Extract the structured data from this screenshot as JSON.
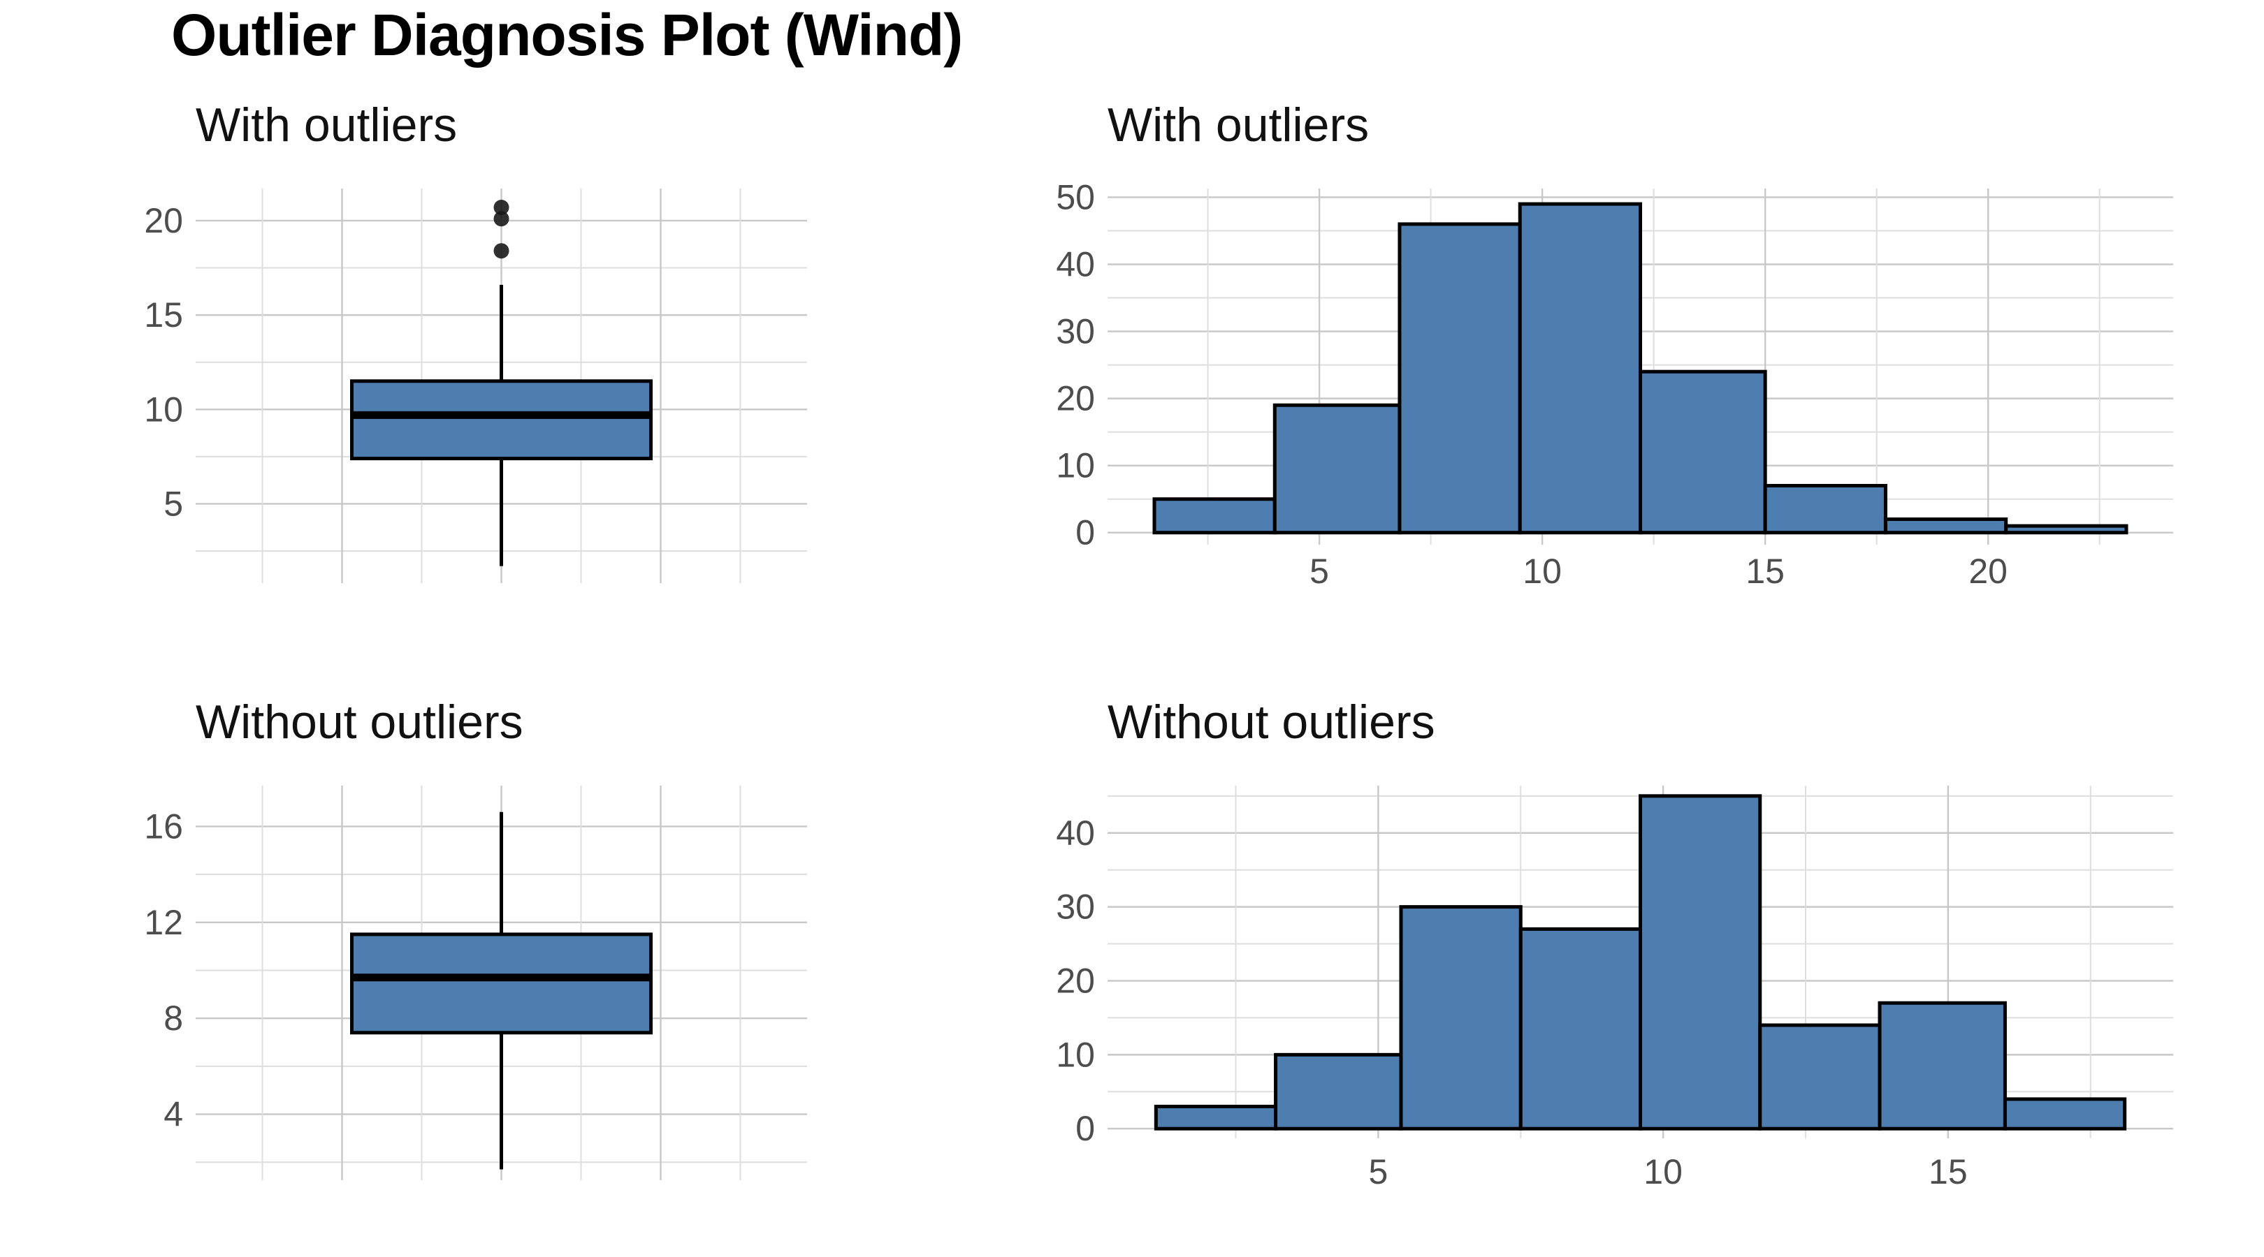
{
  "title": "Outlier Diagnosis Plot (Wind)",
  "colors": {
    "fill": "#4e7db0",
    "outline": "#000000",
    "grid_major": "#c8c8c8",
    "grid_minor": "#dedede",
    "text": "#4d4d4d"
  },
  "chart_data": [
    {
      "type": "boxplot",
      "subtitle": "With outliers",
      "ylim": [
        0.8,
        21.7
      ],
      "yticks": [
        5,
        10,
        15,
        20
      ],
      "stats": {
        "min": 1.7,
        "q1": 7.4,
        "median": 9.7,
        "q3": 11.5,
        "max": 16.6
      },
      "outliers": [
        20.7,
        20.1,
        18.4
      ],
      "grid": true
    },
    {
      "type": "histogram",
      "subtitle": "With outliers",
      "bins": [
        {
          "x0": 1.3,
          "x1": 4.0,
          "count": 5
        },
        {
          "x0": 4.0,
          "x1": 6.8,
          "count": 19
        },
        {
          "x0": 6.8,
          "x1": 9.5,
          "count": 46
        },
        {
          "x0": 9.5,
          "x1": 12.2,
          "count": 49
        },
        {
          "x0": 12.2,
          "x1": 15.0,
          "count": 24
        },
        {
          "x0": 15.0,
          "x1": 17.7,
          "count": 7
        },
        {
          "x0": 17.7,
          "x1": 20.4,
          "count": 2
        },
        {
          "x0": 20.4,
          "x1": 23.1,
          "count": 1
        }
      ],
      "xlim": [
        0.25,
        24.15
      ],
      "ylim": [
        -1.8,
        51.3
      ],
      "xticks": [
        5,
        10,
        15,
        20
      ],
      "yticks": [
        0,
        10,
        20,
        30,
        40,
        50
      ],
      "grid": true
    },
    {
      "type": "boxplot",
      "subtitle": "Without outliers",
      "ylim": [
        1.25,
        17.7
      ],
      "yticks": [
        4,
        8,
        12,
        16
      ],
      "stats": {
        "min": 1.7,
        "q1": 7.4,
        "median": 9.7,
        "q3": 11.5,
        "max": 16.6
      },
      "outliers": [],
      "grid": true
    },
    {
      "type": "histogram",
      "subtitle": "Without outliers",
      "bins": [
        {
          "x0": 1.1,
          "x1": 3.2,
          "count": 3
        },
        {
          "x0": 3.2,
          "x1": 5.4,
          "count": 10
        },
        {
          "x0": 5.4,
          "x1": 7.5,
          "count": 30
        },
        {
          "x0": 7.5,
          "x1": 9.6,
          "count": 27
        },
        {
          "x0": 9.6,
          "x1": 11.7,
          "count": 45
        },
        {
          "x0": 11.7,
          "x1": 13.8,
          "count": 14
        },
        {
          "x0": 13.8,
          "x1": 16.0,
          "count": 17
        },
        {
          "x0": 16.0,
          "x1": 18.1,
          "count": 4
        }
      ],
      "xlim": [
        0.25,
        18.95
      ],
      "ylim": [
        -1.3,
        46.4
      ],
      "xticks": [
        5,
        10,
        15
      ],
      "yticks": [
        0,
        10,
        20,
        30,
        40
      ],
      "grid": true
    }
  ]
}
